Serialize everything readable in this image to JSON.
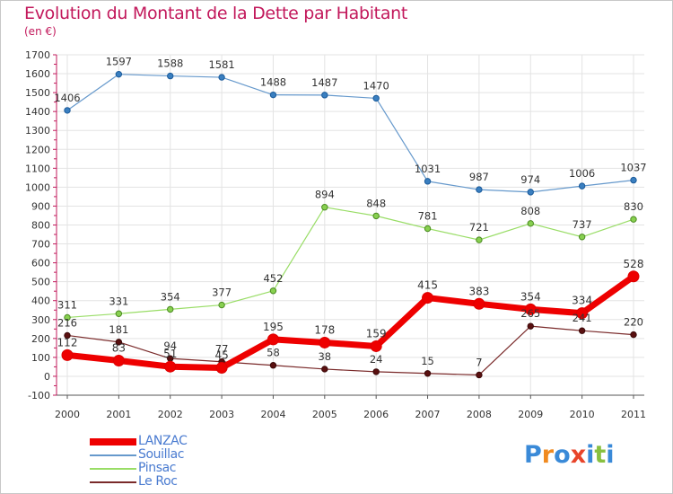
{
  "title": "Evolution du Montant de la Dette par Habitant",
  "subtitle": "(en €)",
  "brand": "Proxiti",
  "chart_data": {
    "type": "line",
    "title": "Evolution du Montant de la Dette par Habitant",
    "subtitle": "(en €)",
    "x": [
      "2000",
      "2001",
      "2002",
      "2003",
      "2004",
      "2005",
      "2006",
      "2007",
      "2008",
      "2009",
      "2010",
      "2011"
    ],
    "ylim": [
      -100,
      1700
    ],
    "yticks": [
      -100,
      0,
      100,
      200,
      300,
      400,
      500,
      600,
      700,
      800,
      900,
      1000,
      1100,
      1200,
      1300,
      1400,
      1500,
      1600,
      1700
    ],
    "grid": true,
    "legend": "bottom-left",
    "series": [
      {
        "name": "LANZAC",
        "color": "#ee0000",
        "values": [
          112,
          83,
          51,
          45,
          195,
          178,
          159,
          415,
          383,
          354,
          334,
          528
        ]
      },
      {
        "name": "Souillac",
        "color": "#6699cc",
        "values": [
          1406,
          1597,
          1588,
          1581,
          1488,
          1487,
          1470,
          1031,
          987,
          974,
          1006,
          1037
        ]
      },
      {
        "name": "Pinsac",
        "color": "#99dd66",
        "values": [
          311,
          331,
          354,
          377,
          452,
          894,
          848,
          781,
          721,
          808,
          737,
          830
        ]
      },
      {
        "name": "Le Roc",
        "color": "#7a2a2a",
        "values": [
          216,
          181,
          94,
          77,
          58,
          38,
          24,
          15,
          7,
          265,
          241,
          220
        ]
      }
    ]
  }
}
